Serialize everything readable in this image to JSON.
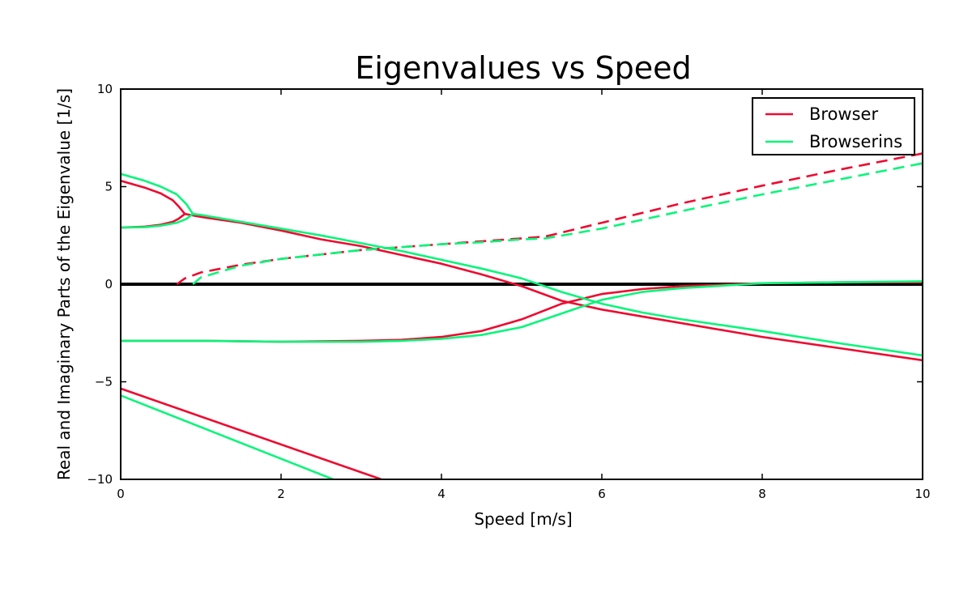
{
  "chart_data": {
    "type": "line",
    "title": "Eigenvalues vs Speed",
    "xlabel": "Speed [m/s]",
    "ylabel": "Real and Imaginary Parts of the Eigenvalue [1/s]",
    "xlim": [
      0,
      10
    ],
    "ylim": [
      -10,
      10
    ],
    "xticks": [
      0,
      2,
      4,
      6,
      8,
      10
    ],
    "yticks": [
      -10,
      -5,
      0,
      5,
      10
    ],
    "ytick_labels": [
      "−10",
      "−5",
      "0",
      "5",
      "10"
    ],
    "grid": false,
    "legend_position": "top-right",
    "zero_line_color": "#000000",
    "series": [
      {
        "name": "Browser",
        "color": "#ee0a30",
        "curves": [
          {
            "style": "solid",
            "points": [
              [
                0,
                5.3
              ],
              [
                0.3,
                4.95
              ],
              [
                0.5,
                4.65
              ],
              [
                0.65,
                4.3
              ],
              [
                0.72,
                4.0
              ],
              [
                0.8,
                3.6
              ],
              [
                1.0,
                3.45
              ],
              [
                1.5,
                3.15
              ],
              [
                2.0,
                2.75
              ],
              [
                2.5,
                2.3
              ],
              [
                3.0,
                1.95
              ],
              [
                3.5,
                1.5
              ],
              [
                4.0,
                1.05
              ],
              [
                4.5,
                0.5
              ],
              [
                5.0,
                -0.1
              ],
              [
                5.5,
                -0.85
              ],
              [
                6.0,
                -1.3
              ],
              [
                6.5,
                -1.65
              ],
              [
                7.0,
                -2.0
              ],
              [
                8.0,
                -2.7
              ],
              [
                9.0,
                -3.3
              ],
              [
                10.0,
                -3.9
              ]
            ]
          },
          {
            "style": "solid",
            "points": [
              [
                0,
                2.9
              ],
              [
                0.3,
                2.95
              ],
              [
                0.5,
                3.05
              ],
              [
                0.65,
                3.2
              ],
              [
                0.72,
                3.35
              ],
              [
                0.8,
                3.6
              ]
            ]
          },
          {
            "style": "dashed",
            "points": [
              [
                0.7,
                0
              ],
              [
                0.8,
                0.3
              ],
              [
                1.0,
                0.6
              ],
              [
                1.5,
                1.0
              ],
              [
                2.0,
                1.3
              ],
              [
                3.0,
                1.75
              ],
              [
                4.0,
                2.05
              ],
              [
                4.5,
                2.2
              ],
              [
                5.0,
                2.35
              ],
              [
                5.3,
                2.45
              ],
              [
                6.0,
                3.15
              ],
              [
                7.0,
                4.15
              ],
              [
                8.0,
                5.05
              ],
              [
                9.0,
                5.9
              ],
              [
                10.0,
                6.7
              ]
            ]
          },
          {
            "style": "solid",
            "points": [
              [
                0,
                -2.9
              ],
              [
                1.0,
                -2.9
              ],
              [
                2.0,
                -2.95
              ],
              [
                3.0,
                -2.9
              ],
              [
                3.5,
                -2.85
              ],
              [
                4.0,
                -2.7
              ],
              [
                4.5,
                -2.4
              ],
              [
                5.0,
                -1.8
              ],
              [
                5.5,
                -1.0
              ],
              [
                6.0,
                -0.5
              ],
              [
                6.5,
                -0.25
              ],
              [
                7.0,
                -0.1
              ],
              [
                8.0,
                0.05
              ],
              [
                9.0,
                0.1
              ],
              [
                10.0,
                0.1
              ]
            ]
          },
          {
            "style": "solid",
            "points": [
              [
                0,
                -5.35
              ],
              [
                3.25,
                -10
              ]
            ]
          }
        ]
      },
      {
        "name": "Browserins",
        "color": "#0af57a",
        "curves": [
          {
            "style": "solid",
            "points": [
              [
                0,
                5.65
              ],
              [
                0.3,
                5.3
              ],
              [
                0.5,
                5.0
              ],
              [
                0.7,
                4.6
              ],
              [
                0.82,
                4.1
              ],
              [
                0.9,
                3.6
              ],
              [
                1.0,
                3.55
              ],
              [
                1.5,
                3.2
              ],
              [
                2.0,
                2.85
              ],
              [
                2.5,
                2.5
              ],
              [
                3.0,
                2.1
              ],
              [
                3.5,
                1.7
              ],
              [
                4.0,
                1.25
              ],
              [
                4.5,
                0.8
              ],
              [
                5.0,
                0.3
              ],
              [
                5.5,
                -0.4
              ],
              [
                6.0,
                -1.0
              ],
              [
                6.5,
                -1.45
              ],
              [
                7.0,
                -1.8
              ],
              [
                8.0,
                -2.4
              ],
              [
                9.0,
                -3.05
              ],
              [
                10.0,
                -3.65
              ]
            ]
          },
          {
            "style": "solid",
            "points": [
              [
                0,
                2.9
              ],
              [
                0.3,
                2.92
              ],
              [
                0.5,
                3.0
              ],
              [
                0.7,
                3.15
              ],
              [
                0.82,
                3.35
              ],
              [
                0.9,
                3.6
              ]
            ]
          },
          {
            "style": "dashed",
            "points": [
              [
                0.9,
                0
              ],
              [
                1.0,
                0.35
              ],
              [
                1.5,
                0.95
              ],
              [
                2.0,
                1.3
              ],
              [
                3.0,
                1.75
              ],
              [
                4.0,
                2.05
              ],
              [
                4.5,
                2.15
              ],
              [
                5.0,
                2.3
              ],
              [
                5.3,
                2.35
              ],
              [
                6.0,
                2.85
              ],
              [
                7.0,
                3.75
              ],
              [
                8.0,
                4.6
              ],
              [
                9.0,
                5.4
              ],
              [
                10.0,
                6.2
              ]
            ]
          },
          {
            "style": "solid",
            "points": [
              [
                0,
                -2.9
              ],
              [
                1.0,
                -2.9
              ],
              [
                2.0,
                -2.95
              ],
              [
                3.0,
                -2.95
              ],
              [
                3.5,
                -2.9
              ],
              [
                4.0,
                -2.8
              ],
              [
                4.5,
                -2.6
              ],
              [
                5.0,
                -2.2
              ],
              [
                5.5,
                -1.5
              ],
              [
                6.0,
                -0.8
              ],
              [
                6.5,
                -0.4
              ],
              [
                7.0,
                -0.2
              ],
              [
                8.0,
                0.05
              ],
              [
                9.0,
                0.1
              ],
              [
                10.0,
                0.15
              ]
            ]
          },
          {
            "style": "solid",
            "points": [
              [
                0,
                -5.7
              ],
              [
                2.65,
                -10
              ]
            ]
          }
        ]
      }
    ]
  }
}
